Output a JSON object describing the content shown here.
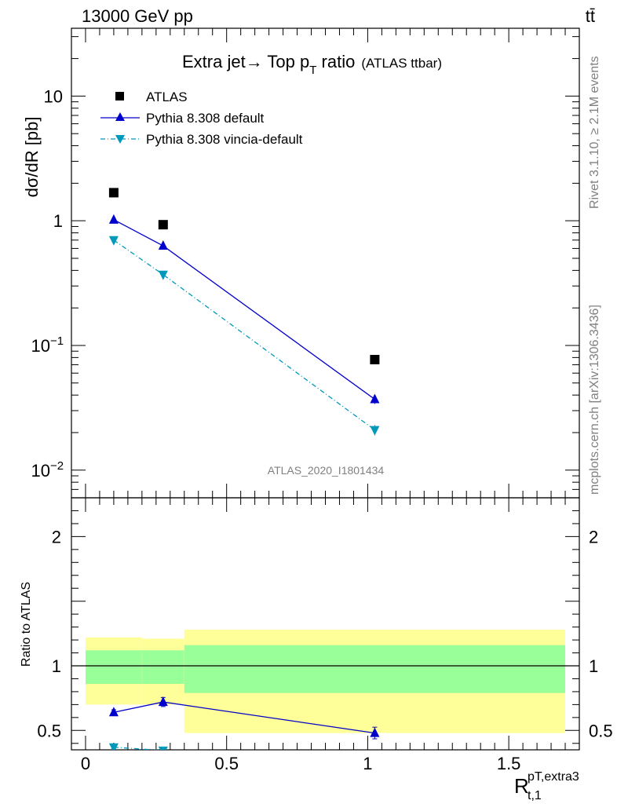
{
  "header": {
    "left": "13000 GeV pp",
    "right": "tt̄"
  },
  "title": {
    "main": "Extra jet→ Top p",
    "sub": "T",
    "rest": " ratio",
    "small": "(ATLAS ttbar)"
  },
  "side_labels": {
    "rivet": "Rivet 3.1.10, ≥ 2.1M events",
    "mcplots": "mcplots.cern.ch [arXiv:1306.3436]"
  },
  "watermark": "ATLAS_2020_I1801434",
  "axes": {
    "ylabel_top": "dσ/dR [pb]",
    "ylabel_ratio": "Ratio to ATLAS",
    "xlabel": "R",
    "xlabel_sup": "pT,extra3",
    "xlabel_sub": "t,1"
  },
  "legend": [
    {
      "label": "ATLAS",
      "color": "#000000",
      "marker": "square"
    },
    {
      "label": "Pythia 8.308 default",
      "color": "#0000cc",
      "marker": "triangle-up"
    },
    {
      "label": "Pythia 8.308 vincia-default",
      "color": "#0099bb",
      "marker": "triangle-down"
    }
  ],
  "chart_data": [
    {
      "type": "scatter",
      "title": "Extra jet→ Top pT ratio (ATLAS ttbar)",
      "ylabel": "dσ/dR [pb]",
      "yscale": "log",
      "xlim": [
        -0.05,
        1.75
      ],
      "ylim": [
        0.006,
        35
      ],
      "yticks": [
        {
          "v": 0.01,
          "b": "10",
          "e": "−2"
        },
        {
          "v": 0.1,
          "b": "10",
          "e": "−1"
        },
        {
          "v": 1,
          "b": "1",
          "e": ""
        },
        {
          "v": 10,
          "b": "10",
          "e": ""
        }
      ],
      "series": [
        {
          "name": "ATLAS",
          "x": [
            0.1,
            0.275,
            1.025
          ],
          "y": [
            1.68,
            0.93,
            0.077
          ],
          "err": [
            0,
            0,
            0
          ]
        },
        {
          "name": "Pythia 8.308 default",
          "x": [
            0.1,
            0.275,
            1.025
          ],
          "y": [
            1.02,
            0.63,
            0.037
          ],
          "err": [
            0.02,
            0.015,
            0.003
          ]
        },
        {
          "name": "Pythia 8.308 vincia-default",
          "x": [
            0.1,
            0.275,
            1.025
          ],
          "y": [
            0.7,
            0.37,
            0.021
          ],
          "err": [
            0.015,
            0.01,
            0.002
          ]
        }
      ]
    },
    {
      "type": "scatter",
      "ylabel": "Ratio to ATLAS",
      "xlabel": "R t,1 pT,extra3",
      "xlim": [
        -0.05,
        1.75
      ],
      "ylim": [
        0.35,
        2.3
      ],
      "xticks": [
        0,
        0.5,
        1,
        1.5
      ],
      "yticks": [
        0.5,
        1,
        2
      ],
      "bands": [
        {
          "x0": 0.0,
          "x1": 0.2,
          "inner": [
            0.86,
            1.12
          ],
          "outer": [
            0.7,
            1.22
          ]
        },
        {
          "x0": 0.2,
          "x1": 0.35,
          "inner": [
            0.86,
            1.12
          ],
          "outer": [
            0.7,
            1.21
          ]
        },
        {
          "x0": 0.35,
          "x1": 1.7,
          "inner": [
            0.79,
            1.16
          ],
          "outer": [
            0.48,
            1.28
          ]
        }
      ],
      "series": [
        {
          "name": "Pythia 8.308 default",
          "x": [
            0.1,
            0.275,
            1.025
          ],
          "y": [
            0.64,
            0.72,
            0.48
          ],
          "err": [
            0.02,
            0.035,
            0.045
          ]
        },
        {
          "name": "Pythia 8.308 vincia-default",
          "x": [
            0.1,
            0.275
          ],
          "y": [
            0.37,
            0.345
          ],
          "err": [
            0.01,
            0.01
          ]
        }
      ]
    }
  ],
  "colors": {
    "atlas": "#000000",
    "default": "#0000cc",
    "vincia": "#0099bb",
    "band_inner": "#99ff99",
    "band_outer": "#ffff99"
  }
}
